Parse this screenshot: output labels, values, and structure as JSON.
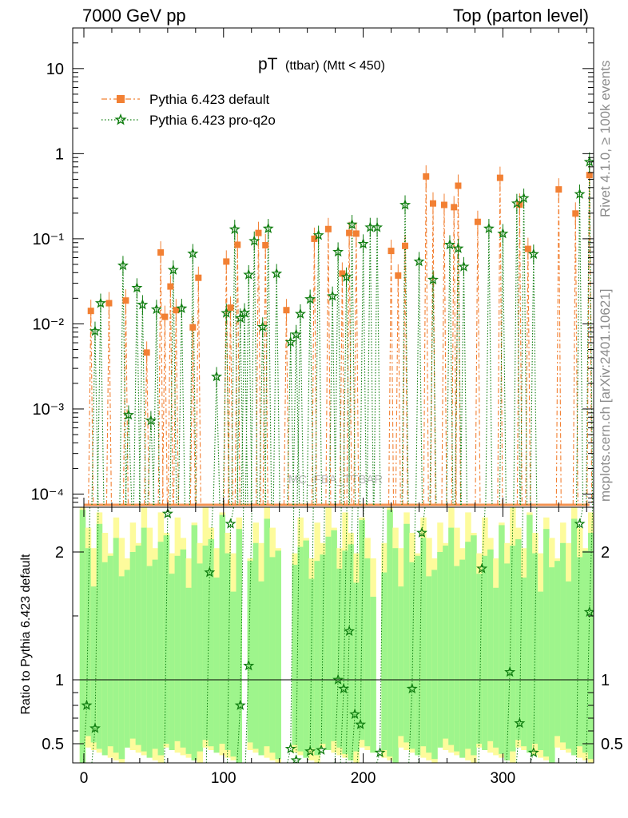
{
  "header": {
    "left": "7000 GeV pp",
    "right": "Top (parton level)"
  },
  "side": {
    "rivet": "Rivet 4.1.0, ≥ 100k events",
    "mcplots": "mcplots.cern.ch [arXiv:2401.10621]"
  },
  "watermark": "MC_FBA_TTBAR",
  "chart_data": [
    {
      "type": "line",
      "title": "pT (ttbar) (Mtt < 450)",
      "title_main": "pT",
      "title_sub": "(ttbar) (Mtt < 450)",
      "xlabel": "",
      "ylabel": "",
      "yscale": "log",
      "xlim": [
        -8,
        365
      ],
      "ylim": [
        7e-05,
        30
      ],
      "x_ticks": [
        "0",
        "100",
        "200",
        "300"
      ],
      "y_ticks": [
        "10⁻⁴",
        "10⁻³",
        "10⁻²",
        "10⁻¹",
        "1",
        "10"
      ],
      "legend": [
        "Pythia 6.423 default",
        "Pythia 6.423 pro-q2o"
      ],
      "series": [
        {
          "name": "Pythia 6.423 default",
          "color": "#f28033",
          "marker": "square",
          "line": "dash-dot",
          "points": [
            [
              5,
              0.0142
            ],
            [
              18,
              0.0175
            ],
            [
              30,
              0.0188
            ],
            [
              45,
              0.0046
            ],
            [
              55,
              0.069
            ],
            [
              58,
              0.0121
            ],
            [
              62,
              0.0275
            ],
            [
              66,
              0.0145
            ],
            [
              78,
              0.0091
            ],
            [
              82,
              0.0348
            ],
            [
              102,
              0.054
            ],
            [
              105,
              0.0155
            ],
            [
              110,
              0.085
            ],
            [
              125,
              0.117
            ],
            [
              130,
              0.084
            ],
            [
              145,
              0.0145
            ],
            [
              165,
              0.1
            ],
            [
              175,
              0.13
            ],
            [
              185,
              0.039
            ],
            [
              190,
              0.117
            ],
            [
              195,
              0.115
            ],
            [
              220,
              0.072
            ],
            [
              225,
              0.037
            ],
            [
              230,
              0.0825
            ],
            [
              245,
              0.54
            ],
            [
              250,
              0.26
            ],
            [
              258,
              0.25
            ],
            [
              265,
              0.235
            ],
            [
              268,
              0.42
            ],
            [
              282,
              0.158
            ],
            [
              298,
              0.52
            ],
            [
              312,
              0.252
            ],
            [
              318,
              0.076
            ],
            [
              340,
              0.38
            ],
            [
              352,
              0.198
            ],
            [
              362,
              0.56
            ]
          ]
        },
        {
          "name": "Pythia 6.423 pro-q2o",
          "color": "#0f7d0f",
          "marker": "star",
          "line": "dotted",
          "points": [
            [
              8,
              0.0082
            ],
            [
              12,
              0.0175
            ],
            [
              28,
              0.0485
            ],
            [
              32,
              0.00085
            ],
            [
              38,
              0.0265
            ],
            [
              42,
              0.0168
            ],
            [
              48,
              0.00073
            ],
            [
              52,
              0.0148
            ],
            [
              64,
              0.043
            ],
            [
              70,
              0.0152
            ],
            [
              78,
              0.067
            ],
            [
              95,
              0.0024
            ],
            [
              102,
              0.0134
            ],
            [
              108,
              0.129
            ],
            [
              112,
              0.0117
            ],
            [
              115,
              0.0135
            ],
            [
              118,
              0.0378
            ],
            [
              122,
              0.094
            ],
            [
              128,
              0.0092
            ],
            [
              132,
              0.132
            ],
            [
              138,
              0.039
            ],
            [
              148,
              0.0061
            ],
            [
              152,
              0.0075
            ],
            [
              155,
              0.0131
            ],
            [
              162,
              0.0195
            ],
            [
              168,
              0.11
            ],
            [
              178,
              0.0212
            ],
            [
              182,
              0.07
            ],
            [
              188,
              0.0355
            ],
            [
              192,
              0.147
            ],
            [
              200,
              0.087
            ],
            [
              205,
              0.136
            ],
            [
              210,
              0.136
            ],
            [
              230,
              0.25
            ],
            [
              240,
              0.054
            ],
            [
              250,
              0.033
            ],
            [
              262,
              0.085
            ],
            [
              268,
              0.077
            ],
            [
              272,
              0.047
            ],
            [
              290,
              0.132
            ],
            [
              300,
              0.115
            ],
            [
              310,
              0.26
            ],
            [
              315,
              0.3
            ],
            [
              322,
              0.066
            ],
            [
              355,
              0.335
            ],
            [
              362,
              0.8
            ]
          ]
        }
      ]
    },
    {
      "type": "line",
      "title": "",
      "xlabel": "",
      "ylabel": "Ratio to Pythia 6.423 default",
      "xlim": [
        -8,
        365
      ],
      "ylim": [
        0.35,
        2.35
      ],
      "x_ticks": [
        "0",
        "100",
        "200",
        "300"
      ],
      "y_ticks": [
        "0.5",
        "1",
        "2"
      ],
      "reference_line": 1,
      "series": [
        {
          "name": "Pythia 6.423 pro-q2o / default",
          "color": "#0f7d0f",
          "marker": "star",
          "points": [
            [
              2,
              0.8
            ],
            [
              8,
              0.62
            ],
            [
              60,
              2.3
            ],
            [
              90,
              1.84
            ],
            [
              105,
              2.22
            ],
            [
              112,
              0.8
            ],
            [
              118,
              1.11
            ],
            [
              148,
              0.46
            ],
            [
              152,
              0.37
            ],
            [
              162,
              0.44
            ],
            [
              170,
              0.45
            ],
            [
              182,
              1.0
            ],
            [
              186,
              0.93
            ],
            [
              190,
              1.38
            ],
            [
              194,
              0.73
            ],
            [
              198,
              0.65
            ],
            [
              212,
              0.43
            ],
            [
              235,
              0.93
            ],
            [
              242,
              2.15
            ],
            [
              285,
              1.87
            ],
            [
              305,
              1.06
            ],
            [
              312,
              0.66
            ],
            [
              322,
              0.43
            ],
            [
              355,
              2.22
            ],
            [
              362,
              1.53
            ]
          ]
        }
      ]
    }
  ]
}
